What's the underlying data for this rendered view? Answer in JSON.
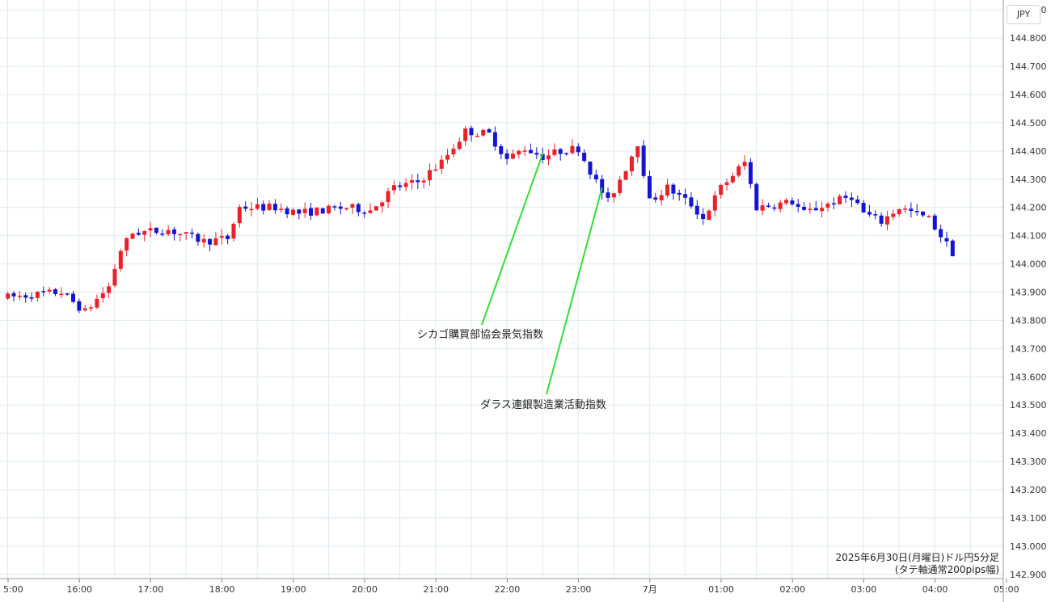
{
  "currency": "JPY",
  "caption": {
    "line1": "2025年6月30日(月曜日)ドル円5分足",
    "line2": "(タテ軸通常200pips幅)"
  },
  "colors": {
    "up": "#e8212b",
    "down": "#1414d2",
    "grid": "#dfe8ee",
    "annotation_line": "#33dd33"
  },
  "chart_data": {
    "type": "candlestick",
    "x_tick_labels": [
      "5:00",
      "16:00",
      "17:00",
      "18:00",
      "19:00",
      "20:00",
      "21:00",
      "22:00",
      "23:00",
      "7月",
      "01:00",
      "02:00",
      "03:00",
      "04:00",
      "05:00"
    ],
    "y_tick_labels": [
      "142.900",
      "143.000",
      "143.100",
      "143.200",
      "143.300",
      "143.400",
      "143.500",
      "143.600",
      "143.700",
      "143.800",
      "143.900",
      "144.000",
      "144.100",
      "144.200",
      "144.300",
      "144.400",
      "144.500",
      "144.600",
      "144.700",
      "144.800",
      "144.900"
    ],
    "ylim": [
      142.885,
      144.935
    ],
    "grid": true,
    "candle_count": 160,
    "close_trace": [
      [
        0,
        143.88
      ],
      [
        10,
        143.9
      ],
      [
        14,
        143.83
      ],
      [
        18,
        143.92
      ],
      [
        20,
        144.05
      ],
      [
        22,
        144.11
      ],
      [
        28,
        144.12
      ],
      [
        34,
        144.08
      ],
      [
        38,
        144.09
      ],
      [
        40,
        144.2
      ],
      [
        46,
        144.2
      ],
      [
        50,
        144.18
      ],
      [
        58,
        144.2
      ],
      [
        62,
        144.19
      ],
      [
        66,
        144.27
      ],
      [
        70,
        144.29
      ],
      [
        74,
        144.36
      ],
      [
        78,
        144.47
      ],
      [
        82,
        144.46
      ],
      [
        85,
        144.37
      ],
      [
        88,
        144.41
      ],
      [
        91,
        144.38
      ],
      [
        94,
        144.4
      ],
      [
        97,
        144.41
      ],
      [
        100,
        144.29
      ],
      [
        102,
        144.22
      ],
      [
        105,
        144.34
      ],
      [
        107,
        144.43
      ],
      [
        109,
        144.22
      ],
      [
        112,
        144.27
      ],
      [
        116,
        144.21
      ],
      [
        118,
        144.16
      ],
      [
        121,
        144.27
      ],
      [
        125,
        144.36
      ],
      [
        127,
        144.2
      ],
      [
        133,
        144.22
      ],
      [
        135,
        144.18
      ],
      [
        140,
        144.22
      ],
      [
        143,
        144.24
      ],
      [
        145,
        144.18
      ],
      [
        148,
        144.15
      ],
      [
        151,
        144.2
      ],
      [
        156,
        144.16
      ],
      [
        158,
        144.1
      ],
      [
        160,
        144.04
      ]
    ],
    "annotations": [
      {
        "text": "シカゴ購買部協会景気指数",
        "x_index": 90,
        "price": 144.39
      },
      {
        "text": "ダラス連銀製造業活動指数",
        "x_index": 100,
        "price": 144.27
      }
    ]
  }
}
